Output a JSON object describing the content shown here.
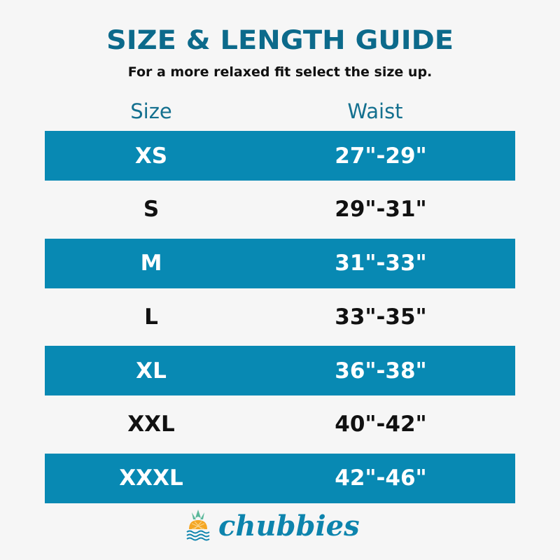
{
  "title": "SIZE & LENGTH GUIDE",
  "subtitle": "For a more relaxed fit select the size up.",
  "headers": {
    "size": "Size",
    "waist": "Waist"
  },
  "rows": [
    {
      "size": "XS",
      "waist": "27\"-29\""
    },
    {
      "size": "S",
      "waist": "29\"-31\""
    },
    {
      "size": "M",
      "waist": "31\"-33\""
    },
    {
      "size": "L",
      "waist": "33\"-35\""
    },
    {
      "size": "XL",
      "waist": "36\"-38\""
    },
    {
      "size": "XXL",
      "waist": "40\"-42\""
    },
    {
      "size": "XXXL",
      "waist": "42\"-46\""
    }
  ],
  "brand": {
    "name": "chubbies",
    "icon": "pineapple-waves-icon"
  },
  "colors": {
    "title": "#0c6a8b",
    "band": "#0889b3",
    "background": "#f6f6f6"
  }
}
